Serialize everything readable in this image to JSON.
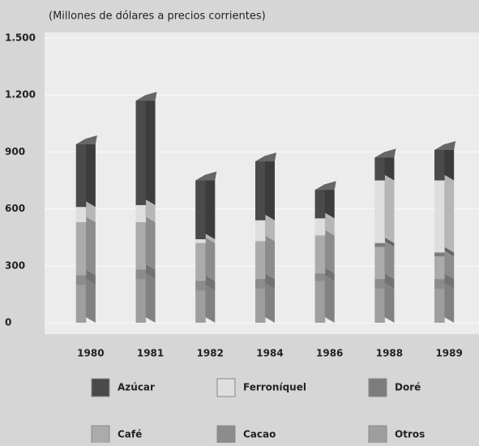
{
  "chart_data": {
    "type": "stacked-bar-3d",
    "subtitle": "(Millones de dólares a precios corrientes)",
    "categories": [
      "1980",
      "1981",
      "1982",
      "1984",
      "1986",
      "1988",
      "1989"
    ],
    "series": [
      {
        "name": "Azúcar",
        "color": "#4a4a4a",
        "values": [
          330,
          550,
          310,
          310,
          150,
          120,
          160
        ]
      },
      {
        "name": "Ferroníquel",
        "color": "#dedede",
        "values": [
          80,
          90,
          20,
          110,
          90,
          330,
          380
        ]
      },
      {
        "name": "Doré",
        "color": "#7c7c7c",
        "values": [
          0,
          0,
          0,
          0,
          0,
          20,
          20
        ]
      },
      {
        "name": "Café",
        "color": "#ababab",
        "values": [
          280,
          250,
          200,
          200,
          200,
          170,
          120
        ]
      },
      {
        "name": "Cacao",
        "color": "#8c8c8c",
        "values": [
          50,
          50,
          50,
          50,
          40,
          50,
          50
        ]
      },
      {
        "name": "Otros",
        "color": "#9e9e9e",
        "values": [
          200,
          230,
          170,
          180,
          220,
          180,
          180
        ]
      }
    ],
    "ylim": [
      0,
      1500
    ],
    "yticks": [
      0,
      300,
      600,
      900,
      {
        "value": 1200,
        "label": "1.200"
      },
      {
        "value": 1500,
        "label": "1.500"
      }
    ],
    "grid": true
  }
}
